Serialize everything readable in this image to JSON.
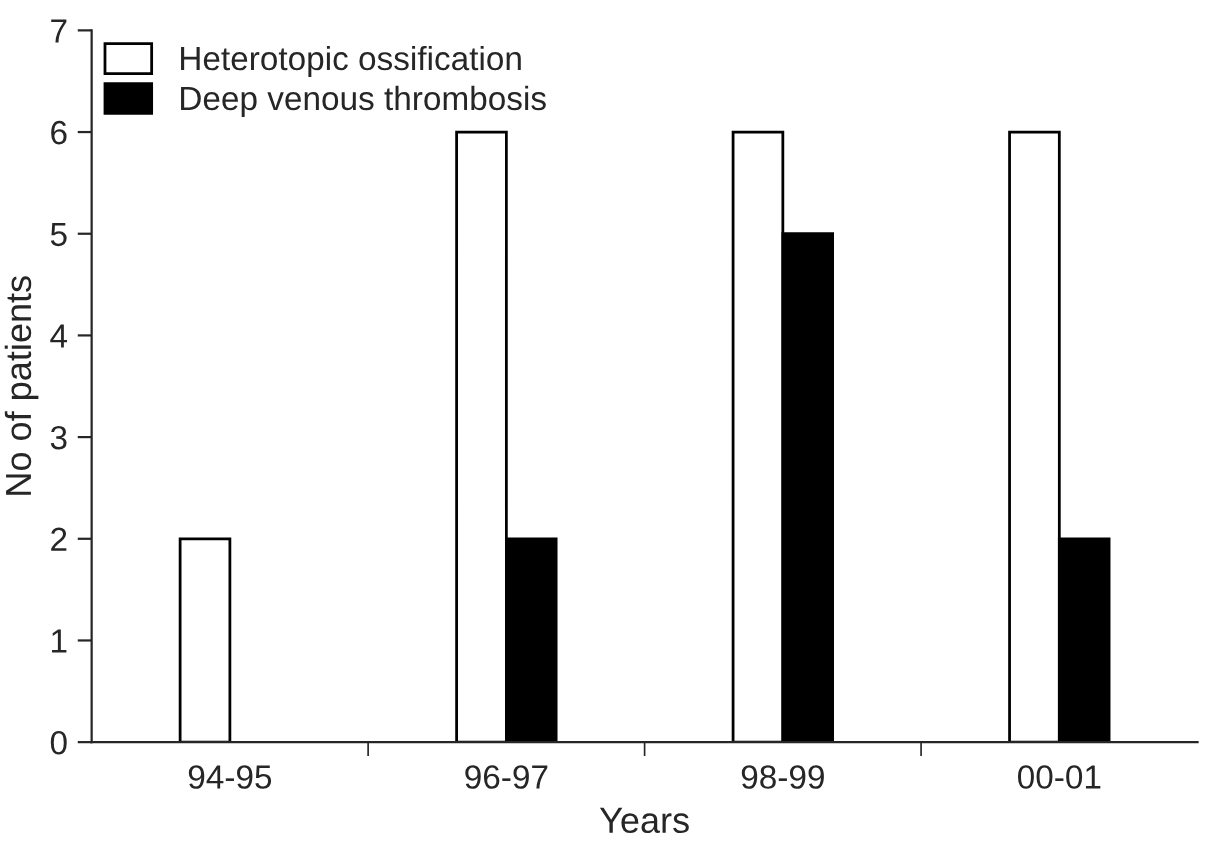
{
  "chart_data": {
    "type": "bar",
    "xlabel": "Years",
    "ylabel": "No of patients",
    "categories": [
      "94-95",
      "96-97",
      "98-99",
      "00-01"
    ],
    "series": [
      {
        "name": "Heterotopic ossification",
        "color": "#ffffff",
        "values": [
          2,
          6,
          6,
          6
        ]
      },
      {
        "name": "Deep venous thrombosis",
        "color": "#000000",
        "values": [
          null,
          2,
          5,
          2
        ]
      }
    ],
    "ylim": [
      0,
      7
    ],
    "yticks": [
      0,
      1,
      2,
      3,
      4,
      5,
      6,
      7
    ],
    "grid": false,
    "legend": "top left"
  }
}
